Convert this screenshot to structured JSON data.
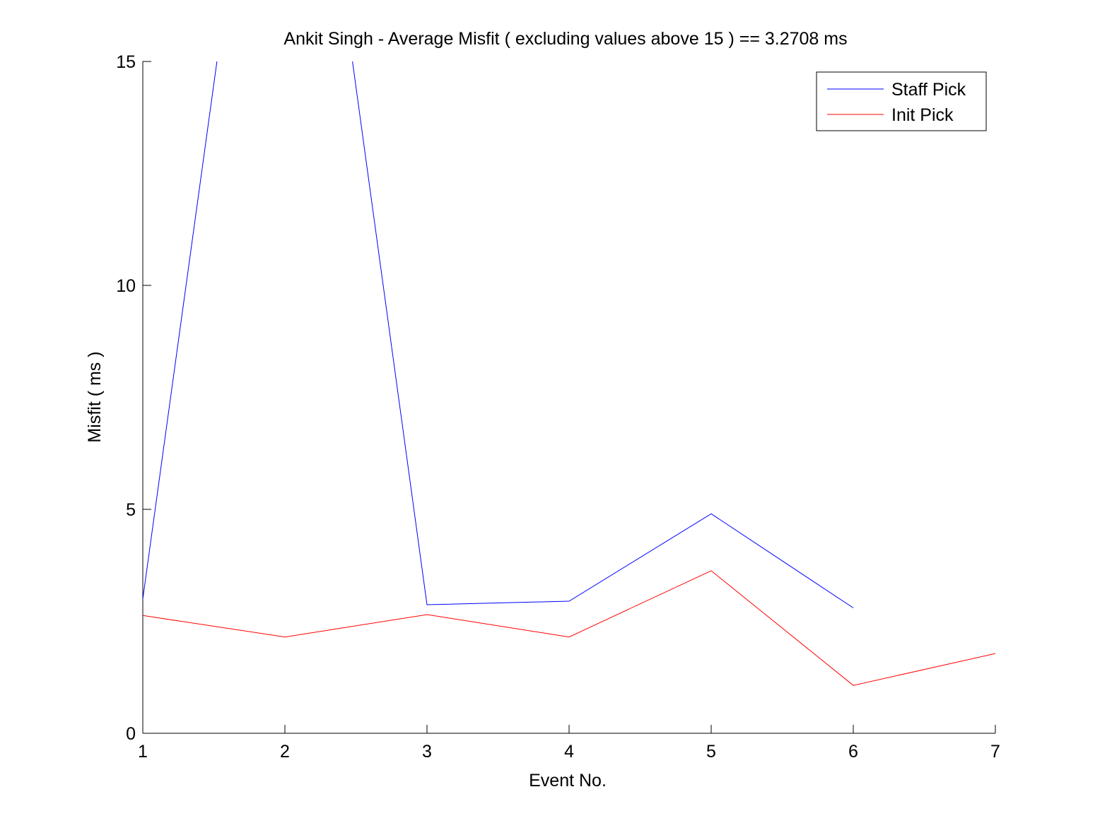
{
  "chart_data": {
    "type": "line",
    "title": "Ankit Singh - Average Misfit ( excluding values above 15 ) == 3.2708 ms",
    "xlabel": "Event No.",
    "ylabel": "Misfit ( ms )",
    "xlim": [
      1,
      7
    ],
    "ylim": [
      0,
      15
    ],
    "x_ticks": [
      1,
      2,
      3,
      4,
      5,
      6,
      7
    ],
    "y_ticks": [
      0,
      5,
      10,
      15
    ],
    "grid": false,
    "legend_position": "top-right",
    "series": [
      {
        "name": "Staff Pick",
        "color": "#0000ff",
        "x": [
          1,
          2,
          3,
          4,
          5,
          6
        ],
        "values": [
          3.0,
          26.0,
          2.87,
          2.95,
          4.9,
          2.8
        ]
      },
      {
        "name": "Init Pick",
        "color": "#ff0000",
        "x": [
          1,
          2,
          3,
          4,
          5,
          6,
          7
        ],
        "values": [
          2.63,
          2.15,
          2.65,
          2.15,
          3.63,
          1.07,
          1.78
        ]
      }
    ]
  }
}
